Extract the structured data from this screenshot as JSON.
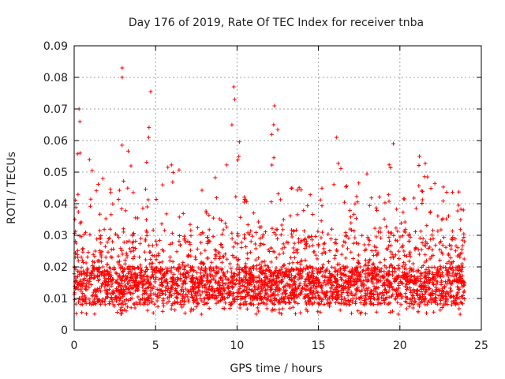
{
  "chart_data": {
    "type": "scatter",
    "title": "Day 176 of 2019, Rate Of TEC Index for receiver tnba",
    "xlabel": "GPS time / hours",
    "ylabel": "ROTI / TECUs",
    "xlim": [
      0,
      25
    ],
    "ylim": [
      0,
      0.09
    ],
    "x_ticks": [
      0,
      5,
      10,
      15,
      20,
      25
    ],
    "x_tick_labels": [
      "0",
      "5",
      "10",
      "15",
      "20",
      "25"
    ],
    "y_ticks": [
      0,
      0.01,
      0.02,
      0.03,
      0.04,
      0.05,
      0.06,
      0.07,
      0.08,
      0.09
    ],
    "y_tick_labels": [
      "0",
      "0.01",
      "0.02",
      "0.03",
      "0.04",
      "0.05",
      "0.06",
      "0.07",
      "0.08",
      "0.09"
    ],
    "grid": true,
    "marker": "+",
    "series": [
      {
        "name": "ROTI",
        "color": "#ff0000",
        "data_range_hours": [
          0,
          24
        ],
        "envelope": [
          {
            "x": 0.0,
            "y": 0.045
          },
          {
            "x": 0.4,
            "y": 0.07
          },
          {
            "x": 0.9,
            "y": 0.056
          },
          {
            "x": 1.5,
            "y": 0.048
          },
          {
            "x": 2.0,
            "y": 0.05
          },
          {
            "x": 2.6,
            "y": 0.064
          },
          {
            "x": 2.9,
            "y": 0.084
          },
          {
            "x": 3.4,
            "y": 0.058
          },
          {
            "x": 4.0,
            "y": 0.052
          },
          {
            "x": 4.7,
            "y": 0.0755
          },
          {
            "x": 5.2,
            "y": 0.055
          },
          {
            "x": 6.0,
            "y": 0.053
          },
          {
            "x": 7.0,
            "y": 0.048
          },
          {
            "x": 8.0,
            "y": 0.045
          },
          {
            "x": 9.0,
            "y": 0.05
          },
          {
            "x": 9.8,
            "y": 0.077
          },
          {
            "x": 10.5,
            "y": 0.042
          },
          {
            "x": 11.5,
            "y": 0.04
          },
          {
            "x": 12.3,
            "y": 0.071
          },
          {
            "x": 13.0,
            "y": 0.045
          },
          {
            "x": 14.0,
            "y": 0.05
          },
          {
            "x": 15.0,
            "y": 0.042
          },
          {
            "x": 16.1,
            "y": 0.061
          },
          {
            "x": 17.0,
            "y": 0.045
          },
          {
            "x": 18.0,
            "y": 0.05
          },
          {
            "x": 19.0,
            "y": 0.045
          },
          {
            "x": 19.6,
            "y": 0.059
          },
          {
            "x": 20.5,
            "y": 0.04
          },
          {
            "x": 21.2,
            "y": 0.055
          },
          {
            "x": 22.0,
            "y": 0.05
          },
          {
            "x": 23.0,
            "y": 0.045
          },
          {
            "x": 24.0,
            "y": 0.043
          }
        ],
        "baseline": {
          "typical_min": 0.005,
          "dense_band": [
            0.008,
            0.02
          ]
        },
        "outliers": [
          {
            "x": 2.95,
            "y": 0.083
          },
          {
            "x": 2.95,
            "y": 0.08
          },
          {
            "x": 4.7,
            "y": 0.0755
          },
          {
            "x": 9.8,
            "y": 0.077
          },
          {
            "x": 9.85,
            "y": 0.073
          },
          {
            "x": 12.3,
            "y": 0.071
          },
          {
            "x": 12.25,
            "y": 0.065
          },
          {
            "x": 0.3,
            "y": 0.07
          },
          {
            "x": 0.35,
            "y": 0.066
          },
          {
            "x": 16.1,
            "y": 0.061
          },
          {
            "x": 19.6,
            "y": 0.059
          },
          {
            "x": 21.2,
            "y": 0.055
          }
        ]
      }
    ]
  }
}
